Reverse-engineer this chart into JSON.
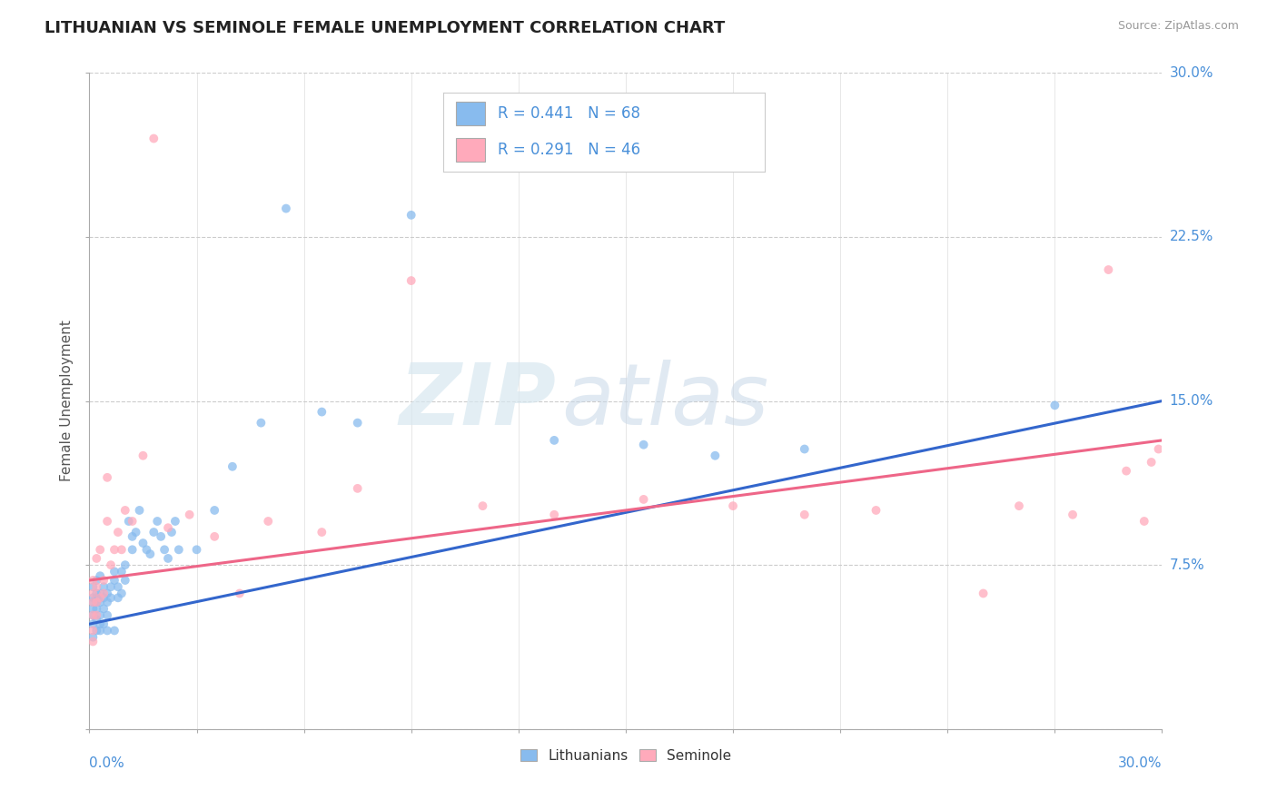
{
  "title": "LITHUANIAN VS SEMINOLE FEMALE UNEMPLOYMENT CORRELATION CHART",
  "source": "Source: ZipAtlas.com",
  "ylabel": "Female Unemployment",
  "right_yticks": [
    0.0,
    0.075,
    0.15,
    0.225,
    0.3
  ],
  "right_yticklabels": [
    "",
    "7.5%",
    "15.0%",
    "22.5%",
    "30.0%"
  ],
  "legend1_text": "R = 0.441   N = 68",
  "legend2_text": "R = 0.291   N = 46",
  "color_blue": "#88bbee",
  "color_pink": "#ffaabb",
  "color_blue_line": "#3366cc",
  "color_pink_line": "#ee6688",
  "color_axis_label": "#4a90d9",
  "watermark_zip": "ZIP",
  "watermark_atlas": "atlas",
  "xmin": 0.0,
  "xmax": 0.3,
  "ymin": 0.0,
  "ymax": 0.3,
  "blue_trend_x": [
    0.0,
    0.3
  ],
  "blue_trend_y": [
    0.048,
    0.15
  ],
  "pink_trend_x": [
    0.0,
    0.3
  ],
  "pink_trend_y": [
    0.068,
    0.132
  ],
  "blue_scatter_x": [
    0.001,
    0.001,
    0.001,
    0.001,
    0.001,
    0.001,
    0.001,
    0.002,
    0.002,
    0.002,
    0.002,
    0.002,
    0.002,
    0.002,
    0.003,
    0.003,
    0.003,
    0.003,
    0.003,
    0.003,
    0.004,
    0.004,
    0.004,
    0.004,
    0.005,
    0.005,
    0.005,
    0.005,
    0.006,
    0.006,
    0.007,
    0.007,
    0.007,
    0.008,
    0.008,
    0.009,
    0.009,
    0.01,
    0.01,
    0.011,
    0.012,
    0.012,
    0.013,
    0.014,
    0.015,
    0.016,
    0.017,
    0.018,
    0.019,
    0.02,
    0.021,
    0.022,
    0.023,
    0.024,
    0.025,
    0.03,
    0.035,
    0.04,
    0.048,
    0.055,
    0.065,
    0.075,
    0.09,
    0.13,
    0.155,
    0.175,
    0.2,
    0.27
  ],
  "blue_scatter_y": [
    0.055,
    0.06,
    0.065,
    0.058,
    0.052,
    0.048,
    0.042,
    0.062,
    0.055,
    0.058,
    0.05,
    0.045,
    0.068,
    0.06,
    0.058,
    0.062,
    0.052,
    0.048,
    0.07,
    0.045,
    0.06,
    0.055,
    0.065,
    0.048,
    0.062,
    0.058,
    0.052,
    0.045,
    0.065,
    0.06,
    0.068,
    0.072,
    0.045,
    0.065,
    0.06,
    0.072,
    0.062,
    0.075,
    0.068,
    0.095,
    0.082,
    0.088,
    0.09,
    0.1,
    0.085,
    0.082,
    0.08,
    0.09,
    0.095,
    0.088,
    0.082,
    0.078,
    0.09,
    0.095,
    0.082,
    0.082,
    0.1,
    0.12,
    0.14,
    0.238,
    0.145,
    0.14,
    0.235,
    0.132,
    0.13,
    0.125,
    0.128,
    0.148
  ],
  "pink_scatter_x": [
    0.001,
    0.001,
    0.001,
    0.001,
    0.001,
    0.001,
    0.002,
    0.002,
    0.002,
    0.002,
    0.003,
    0.003,
    0.004,
    0.004,
    0.005,
    0.005,
    0.006,
    0.007,
    0.008,
    0.009,
    0.01,
    0.012,
    0.015,
    0.018,
    0.022,
    0.028,
    0.035,
    0.042,
    0.05,
    0.065,
    0.075,
    0.09,
    0.11,
    0.13,
    0.155,
    0.18,
    0.2,
    0.22,
    0.25,
    0.26,
    0.275,
    0.285,
    0.29,
    0.295,
    0.297,
    0.299
  ],
  "pink_scatter_y": [
    0.062,
    0.058,
    0.052,
    0.068,
    0.045,
    0.04,
    0.065,
    0.058,
    0.052,
    0.078,
    0.06,
    0.082,
    0.068,
    0.062,
    0.115,
    0.095,
    0.075,
    0.082,
    0.09,
    0.082,
    0.1,
    0.095,
    0.125,
    0.27,
    0.092,
    0.098,
    0.088,
    0.062,
    0.095,
    0.09,
    0.11,
    0.205,
    0.102,
    0.098,
    0.105,
    0.102,
    0.098,
    0.1,
    0.062,
    0.102,
    0.098,
    0.21,
    0.118,
    0.095,
    0.122,
    0.128
  ]
}
